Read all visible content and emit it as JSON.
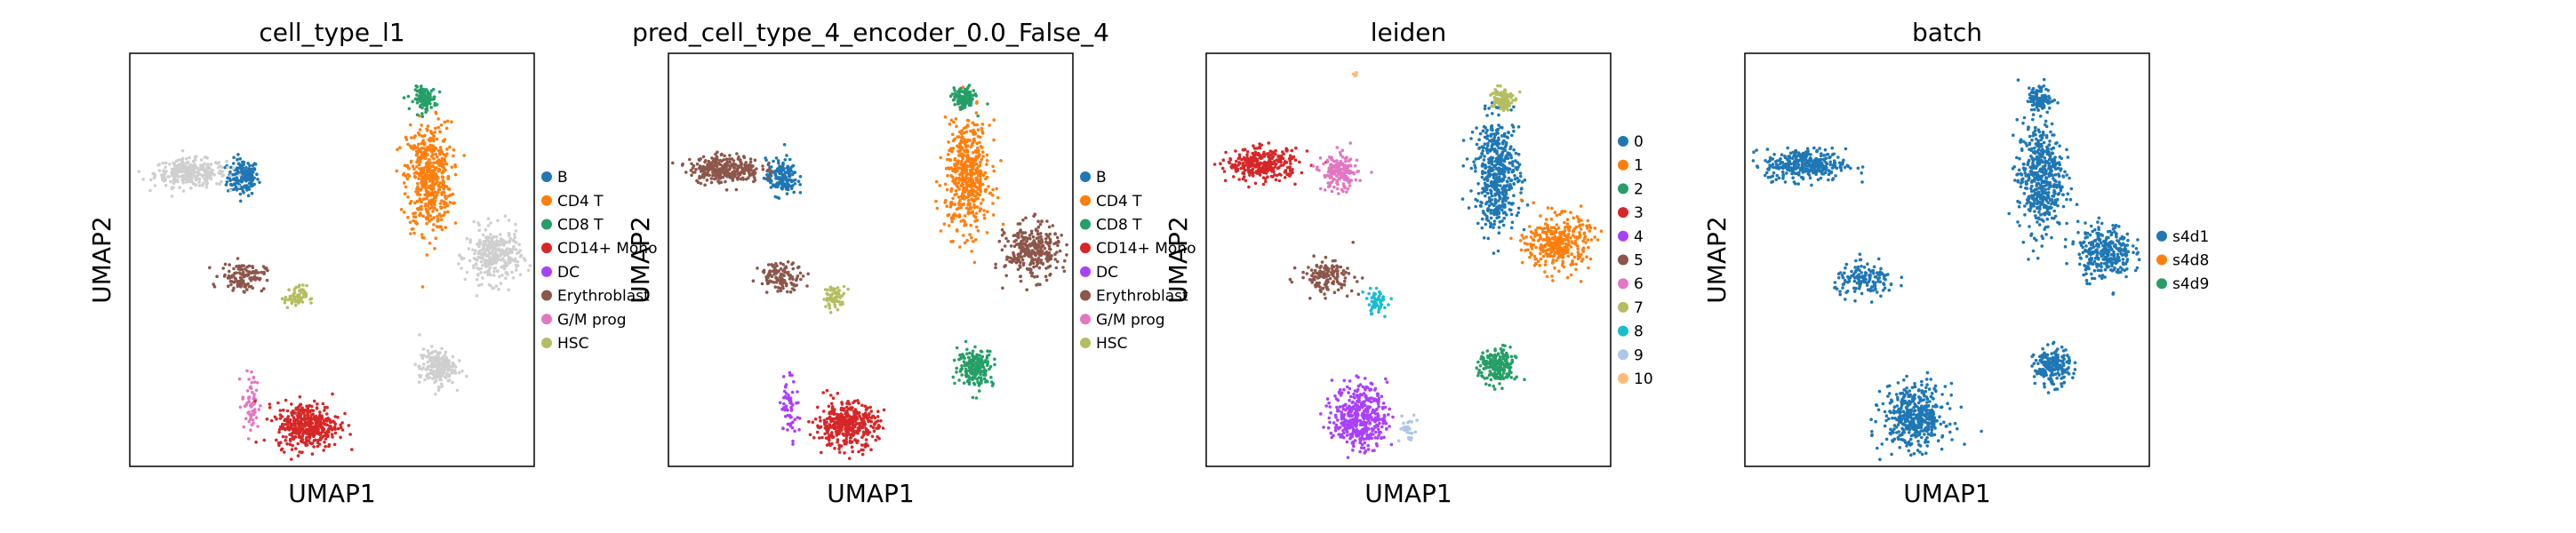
{
  "chart_data": [
    {
      "type": "scatter",
      "title": "cell_type_l1",
      "xlabel": "UMAP1",
      "ylabel": "UMAP2",
      "legend_position": "right",
      "categories": [
        "B",
        "CD4 T",
        "CD8 T",
        "CD14+ Mono",
        "DC",
        "Erythroblast",
        "G/M prog",
        "HSC"
      ],
      "colors": [
        "#1f77b4",
        "#ff7f0e",
        "#279e68",
        "#d62728",
        "#aa40fc",
        "#8c564b",
        "#e377c2",
        "#b5bd61"
      ],
      "other_color": "#cfcfcf",
      "clusters": [
        {
          "c": 0,
          "x": 0.28,
          "y": 0.7,
          "rx": 0.035,
          "ry": 0.04,
          "n": 160
        },
        {
          "c": 8,
          "x": 0.15,
          "y": 0.71,
          "rx": 0.08,
          "ry": 0.03,
          "n": 300
        },
        {
          "c": 1,
          "x": 0.74,
          "y": 0.7,
          "rx": 0.05,
          "ry": 0.12,
          "n": 500
        },
        {
          "c": 2,
          "x": 0.73,
          "y": 0.89,
          "rx": 0.025,
          "ry": 0.025,
          "n": 120
        },
        {
          "c": 8,
          "x": 0.9,
          "y": 0.51,
          "rx": 0.06,
          "ry": 0.06,
          "n": 300
        },
        {
          "c": 5,
          "x": 0.28,
          "y": 0.46,
          "rx": 0.05,
          "ry": 0.03,
          "n": 120
        },
        {
          "c": 7,
          "x": 0.41,
          "y": 0.41,
          "rx": 0.025,
          "ry": 0.025,
          "n": 60
        },
        {
          "c": 6,
          "x": 0.3,
          "y": 0.15,
          "rx": 0.02,
          "ry": 0.07,
          "n": 60
        },
        {
          "c": 3,
          "x": 0.44,
          "y": 0.1,
          "rx": 0.07,
          "ry": 0.05,
          "n": 400
        },
        {
          "c": 8,
          "x": 0.76,
          "y": 0.24,
          "rx": 0.04,
          "ry": 0.04,
          "n": 200
        }
      ]
    },
    {
      "type": "scatter",
      "title": "pred_cell_type_4_encoder_0.0_False_4",
      "xlabel": "UMAP1",
      "ylabel": "UMAP2",
      "legend_position": "right",
      "categories": [
        "B",
        "CD4 T",
        "CD8 T",
        "CD14+ Mono",
        "DC",
        "Erythroblast",
        "G/M prog",
        "HSC"
      ],
      "colors": [
        "#1f77b4",
        "#ff7f0e",
        "#279e68",
        "#d62728",
        "#aa40fc",
        "#8c564b",
        "#e377c2",
        "#b5bd61"
      ],
      "clusters": [
        {
          "c": 0,
          "x": 0.28,
          "y": 0.7,
          "rx": 0.035,
          "ry": 0.04,
          "n": 160
        },
        {
          "c": 5,
          "x": 0.14,
          "y": 0.72,
          "rx": 0.08,
          "ry": 0.03,
          "n": 300
        },
        {
          "c": 1,
          "x": 0.74,
          "y": 0.7,
          "rx": 0.05,
          "ry": 0.12,
          "n": 500
        },
        {
          "c": 2,
          "x": 0.73,
          "y": 0.89,
          "rx": 0.025,
          "ry": 0.025,
          "n": 120
        },
        {
          "c": 5,
          "x": 0.9,
          "y": 0.52,
          "rx": 0.06,
          "ry": 0.06,
          "n": 300
        },
        {
          "c": 5,
          "x": 0.28,
          "y": 0.46,
          "rx": 0.05,
          "ry": 0.03,
          "n": 120
        },
        {
          "c": 7,
          "x": 0.41,
          "y": 0.41,
          "rx": 0.025,
          "ry": 0.025,
          "n": 60
        },
        {
          "c": 4,
          "x": 0.3,
          "y": 0.15,
          "rx": 0.02,
          "ry": 0.07,
          "n": 60
        },
        {
          "c": 3,
          "x": 0.44,
          "y": 0.1,
          "rx": 0.07,
          "ry": 0.05,
          "n": 400
        },
        {
          "c": 2,
          "x": 0.76,
          "y": 0.24,
          "rx": 0.04,
          "ry": 0.04,
          "n": 200
        }
      ]
    },
    {
      "type": "scatter",
      "title": "leiden",
      "xlabel": "UMAP1",
      "ylabel": "UMAP2",
      "legend_position": "right",
      "categories": [
        "0",
        "1",
        "2",
        "3",
        "4",
        "5",
        "6",
        "7",
        "8",
        "9",
        "10"
      ],
      "colors": [
        "#1f77b4",
        "#ff7f0e",
        "#279e68",
        "#d62728",
        "#aa40fc",
        "#8c564b",
        "#e377c2",
        "#b5bd61",
        "#17becf",
        "#aec7e8",
        "#ffbb78"
      ],
      "clusters": [
        {
          "c": 3,
          "x": 0.14,
          "y": 0.73,
          "rx": 0.08,
          "ry": 0.035,
          "n": 300
        },
        {
          "c": 6,
          "x": 0.33,
          "y": 0.71,
          "rx": 0.04,
          "ry": 0.04,
          "n": 180
        },
        {
          "c": 0,
          "x": 0.72,
          "y": 0.71,
          "rx": 0.05,
          "ry": 0.12,
          "n": 500
        },
        {
          "c": 7,
          "x": 0.73,
          "y": 0.89,
          "rx": 0.025,
          "ry": 0.025,
          "n": 120
        },
        {
          "c": 1,
          "x": 0.87,
          "y": 0.54,
          "rx": 0.07,
          "ry": 0.06,
          "n": 350
        },
        {
          "c": 5,
          "x": 0.3,
          "y": 0.46,
          "rx": 0.06,
          "ry": 0.035,
          "n": 140
        },
        {
          "c": 8,
          "x": 0.42,
          "y": 0.4,
          "rx": 0.025,
          "ry": 0.03,
          "n": 50
        },
        {
          "c": 4,
          "x": 0.38,
          "y": 0.12,
          "rx": 0.06,
          "ry": 0.07,
          "n": 420
        },
        {
          "c": 9,
          "x": 0.5,
          "y": 0.09,
          "rx": 0.02,
          "ry": 0.03,
          "n": 30
        },
        {
          "c": 2,
          "x": 0.72,
          "y": 0.24,
          "rx": 0.04,
          "ry": 0.04,
          "n": 200
        },
        {
          "c": 10,
          "x": 0.37,
          "y": 0.95,
          "rx": 0.005,
          "ry": 0.005,
          "n": 6
        }
      ]
    },
    {
      "type": "scatter",
      "title": "batch",
      "xlabel": "UMAP1",
      "ylabel": "UMAP2",
      "legend_position": "right",
      "categories": [
        "s4d1",
        "s4d8",
        "s4d9"
      ],
      "colors": [
        "#1f77b4",
        "#ff7f0e",
        "#279e68"
      ],
      "clusters": [
        {
          "c": 0,
          "x": 0.15,
          "y": 0.73,
          "rx": 0.09,
          "ry": 0.035,
          "n": 350
        },
        {
          "c": 0,
          "x": 0.73,
          "y": 0.7,
          "rx": 0.05,
          "ry": 0.12,
          "n": 500
        },
        {
          "c": 0,
          "x": 0.73,
          "y": 0.89,
          "rx": 0.025,
          "ry": 0.025,
          "n": 120
        },
        {
          "c": 0,
          "x": 0.89,
          "y": 0.52,
          "rx": 0.06,
          "ry": 0.06,
          "n": 300
        },
        {
          "c": 0,
          "x": 0.3,
          "y": 0.45,
          "rx": 0.07,
          "ry": 0.035,
          "n": 150
        },
        {
          "c": 0,
          "x": 0.42,
          "y": 0.12,
          "rx": 0.07,
          "ry": 0.07,
          "n": 450
        },
        {
          "c": 0,
          "x": 0.76,
          "y": 0.24,
          "rx": 0.04,
          "ry": 0.04,
          "n": 200
        }
      ]
    }
  ]
}
